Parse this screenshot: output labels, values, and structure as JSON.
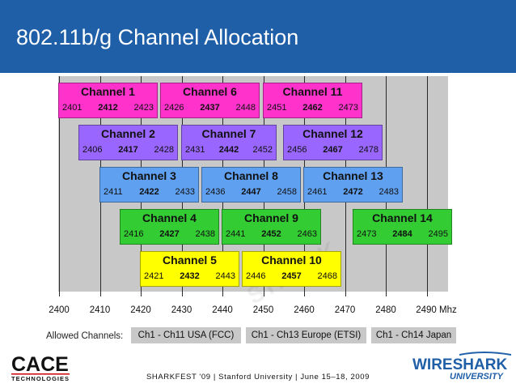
{
  "title": "802.11b/g Channel Allocation",
  "colors": {
    "pink": "#ff33cc",
    "purple": "#9966ff",
    "blue": "#5fa0f0",
    "green": "#33cc33",
    "yellow": "#ffff00",
    "header": "#1f5fa8",
    "grid": "#c8c8c8"
  },
  "axis": {
    "min": 2400,
    "max": 2490,
    "ticks": [
      "2400",
      "2410",
      "2420",
      "2430",
      "2440",
      "2450",
      "2460",
      "2470",
      "2480",
      "2490 Mhz"
    ]
  },
  "channels": [
    {
      "name": "Channel 1",
      "low": "2401",
      "center": "2412",
      "high": "2423",
      "row": 0,
      "color": "pink"
    },
    {
      "name": "Channel 6",
      "low": "2426",
      "center": "2437",
      "high": "2448",
      "row": 0,
      "color": "pink"
    },
    {
      "name": "Channel 11",
      "low": "2451",
      "center": "2462",
      "high": "2473",
      "row": 0,
      "color": "pink"
    },
    {
      "name": "Channel 2",
      "low": "2406",
      "center": "2417",
      "high": "2428",
      "row": 1,
      "color": "purple"
    },
    {
      "name": "Channel 7",
      "low": "2431",
      "center": "2442",
      "high": "2452",
      "row": 1,
      "color": "purple"
    },
    {
      "name": "Channel 12",
      "low": "2456",
      "center": "2467",
      "high": "2478",
      "row": 1,
      "color": "purple"
    },
    {
      "name": "Channel 3",
      "low": "2411",
      "center": "2422",
      "high": "2433",
      "row": 2,
      "color": "blue"
    },
    {
      "name": "Channel 8",
      "low": "2436",
      "center": "2447",
      "high": "2458",
      "row": 2,
      "color": "blue"
    },
    {
      "name": "Channel 13",
      "low": "2461",
      "center": "2472",
      "high": "2483",
      "row": 2,
      "color": "blue"
    },
    {
      "name": "Channel 4",
      "low": "2416",
      "center": "2427",
      "high": "2438",
      "row": 3,
      "color": "green"
    },
    {
      "name": "Channel 9",
      "low": "2441",
      "center": "2452",
      "high": "2463",
      "row": 3,
      "color": "green"
    },
    {
      "name": "Channel 14",
      "low": "2473",
      "center": "2484",
      "high": "2495",
      "row": 3,
      "color": "green"
    },
    {
      "name": "Channel 5",
      "low": "2421",
      "center": "2432",
      "high": "2443",
      "row": 4,
      "color": "yellow"
    },
    {
      "name": "Channel 10",
      "low": "2446",
      "center": "2457",
      "high": "2468",
      "row": 4,
      "color": "yellow"
    }
  ],
  "allowed": {
    "label": "Allowed Channels:",
    "regions": [
      "Ch1 - Ch11 USA (FCC)",
      "Ch1 - Ch13 Europe (ETSI)",
      "Ch1 - Ch14 Japan"
    ]
  },
  "logos": {
    "cace_top": "CACE",
    "cace_bottom": "TECHNOLOGIES",
    "wireshark_top": "WIRESHARK",
    "wireshark_bottom": "UNIVERSITY"
  },
  "footer": "SHARKFEST '09  |  Stanford University  |  June 15–18, 2009"
}
